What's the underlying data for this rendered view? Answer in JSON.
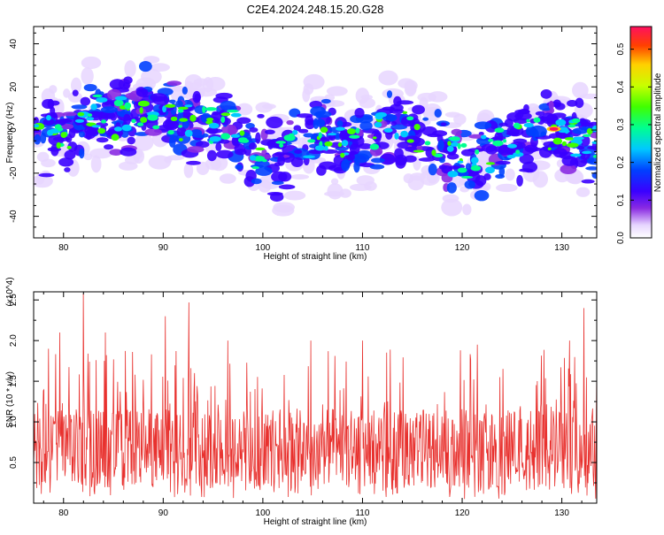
{
  "title": "C2E4.2024.248.15.20.G28",
  "chart_data": [
    {
      "type": "heatmap",
      "xlabel": "Height of straight line (km)",
      "ylabel": "Frequency (Hz)",
      "xlim": [
        77,
        133.5
      ],
      "ylim": [
        -50,
        48
      ],
      "xticks": [
        "80",
        "90",
        "100",
        "110",
        "120",
        "130"
      ],
      "yticks": [
        "40",
        "20",
        "0",
        "-20",
        "-40"
      ],
      "colorbar": {
        "label": "Normalized spectral amplitude",
        "range": [
          0,
          0.56
        ],
        "ticks": [
          "0.0",
          "0.1",
          "0.2",
          "0.3",
          "0.4",
          "0.5"
        ]
      },
      "ridge": [
        {
          "x": 77,
          "y": 0
        },
        {
          "x": 80,
          "y": -3
        },
        {
          "x": 83,
          "y": 8
        },
        {
          "x": 85,
          "y": 4
        },
        {
          "x": 88,
          "y": 12
        },
        {
          "x": 90,
          "y": 8
        },
        {
          "x": 93,
          "y": 2
        },
        {
          "x": 96,
          "y": 4
        },
        {
          "x": 99,
          "y": -8
        },
        {
          "x": 102,
          "y": -14
        },
        {
          "x": 105,
          "y": -2
        },
        {
          "x": 108,
          "y": -6
        },
        {
          "x": 111,
          "y": -2
        },
        {
          "x": 114,
          "y": 2
        },
        {
          "x": 117,
          "y": -8
        },
        {
          "x": 120,
          "y": -14
        },
        {
          "x": 123,
          "y": -10
        },
        {
          "x": 126,
          "y": -5
        },
        {
          "x": 129,
          "y": 0
        },
        {
          "x": 131,
          "y": -2
        },
        {
          "x": 133,
          "y": -8
        }
      ],
      "peak": {
        "x": 129.2,
        "y": 0.5,
        "value": 0.55
      }
    },
    {
      "type": "line",
      "xlabel": "Height of straight line (km)",
      "ylabel": "SNR (10 * v/v)",
      "y_multiplier": "(x10^4)",
      "xlim": [
        77,
        133.5
      ],
      "ylim": [
        0,
        2.6
      ],
      "xticks": [
        "80",
        "90",
        "100",
        "110",
        "120",
        "130"
      ],
      "yticks": [
        "0.5",
        "1.0",
        "1.5",
        "2.0",
        "2.5"
      ],
      "series_color": "#e8312e",
      "n_samples": 1100,
      "mean_level": 0.75,
      "notable_peaks": [
        {
          "x": 78.5,
          "y": 1.9
        },
        {
          "x": 79.6,
          "y": 2.1
        },
        {
          "x": 82.0,
          "y": 2.58
        },
        {
          "x": 84.2,
          "y": 2.1
        },
        {
          "x": 90.2,
          "y": 2.3
        },
        {
          "x": 92.6,
          "y": 2.47
        },
        {
          "x": 96.5,
          "y": 2.0
        },
        {
          "x": 104.8,
          "y": 2.0
        },
        {
          "x": 110.0,
          "y": 2.0
        },
        {
          "x": 121.5,
          "y": 1.95
        },
        {
          "x": 130.8,
          "y": 2.0
        },
        {
          "x": 132.2,
          "y": 2.4
        }
      ]
    }
  ]
}
